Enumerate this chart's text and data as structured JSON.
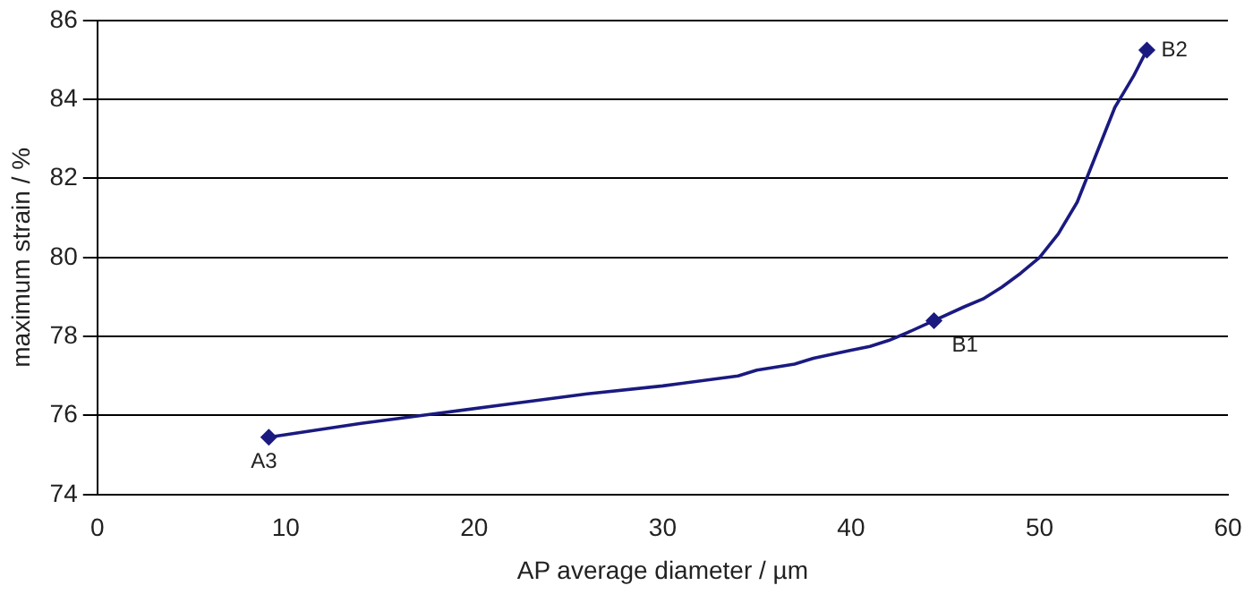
{
  "chart_data": {
    "type": "line",
    "xlabel": "AP average diameter / µm",
    "ylabel": "maximum strain / %",
    "xlim": [
      0,
      60
    ],
    "xticks": [
      0,
      10,
      20,
      30,
      40,
      50,
      60
    ],
    "ylim": [
      74,
      86
    ],
    "yticks": [
      74,
      76,
      78,
      80,
      82,
      84,
      86
    ],
    "grid": "y",
    "series": [
      {
        "color": "#1a1a80",
        "marker": "none",
        "x": [
          9.1,
          14,
          18,
          22,
          26,
          30,
          34,
          35,
          37,
          38,
          39,
          40,
          41,
          42,
          43,
          44.4,
          46,
          47,
          48,
          49,
          50,
          51,
          52,
          52.5,
          53,
          53.5,
          54,
          54.5,
          55,
          55.7
        ],
        "values": [
          75.45,
          75.8,
          76.05,
          76.3,
          76.55,
          76.75,
          77.0,
          77.15,
          77.3,
          77.45,
          77.55,
          77.65,
          77.75,
          77.9,
          78.1,
          78.4,
          78.75,
          78.95,
          79.25,
          79.6,
          80.0,
          80.6,
          81.4,
          82.0,
          82.6,
          83.2,
          83.8,
          84.2,
          84.6,
          85.25
        ]
      },
      {
        "type": "scatter",
        "color": "#1a1a80",
        "marker": "diamond",
        "x": [
          9.1,
          44.4,
          55.7
        ],
        "values": [
          75.45,
          78.4,
          85.25
        ]
      }
    ],
    "annotations": [
      {
        "text": "A3",
        "x": 9.1,
        "y": 75.45
      },
      {
        "text": "B1",
        "x": 44.4,
        "y": 78.4
      },
      {
        "text": "B2",
        "x": 55.7,
        "y": 85.25
      }
    ]
  }
}
